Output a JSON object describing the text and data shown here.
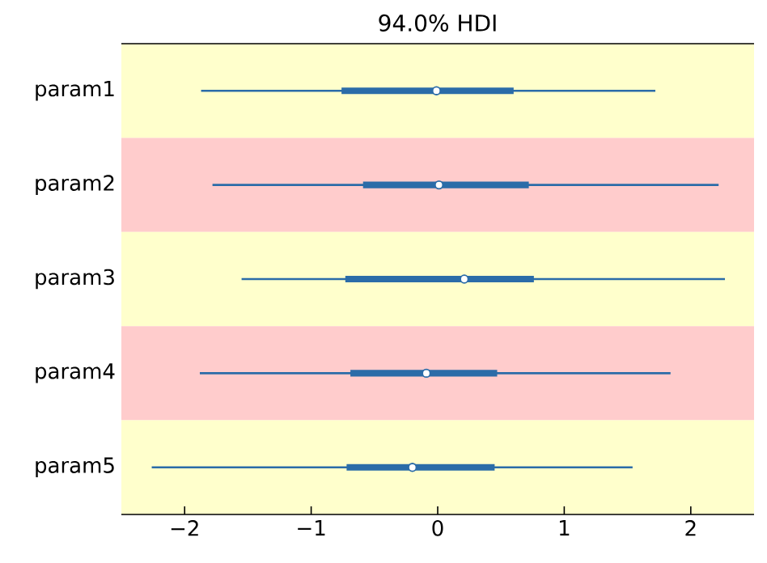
{
  "chart_data": {
    "type": "box",
    "orientation": "horizontal",
    "title": "94.0% HDI",
    "categories": [
      "param1",
      "param2",
      "param3",
      "param4",
      "param5"
    ],
    "series": [
      {
        "color": "#2b6ca8",
        "boxes": [
          {
            "low": -1.87,
            "q1": -0.76,
            "median": -0.01,
            "q3": 0.6,
            "high": 1.72
          },
          {
            "low": -1.78,
            "q1": -0.59,
            "median": 0.01,
            "q3": 0.72,
            "high": 2.22
          },
          {
            "low": -1.55,
            "q1": -0.73,
            "median": 0.21,
            "q3": 0.76,
            "high": 2.27
          },
          {
            "low": -1.88,
            "q1": -0.69,
            "median": -0.09,
            "q3": 0.47,
            "high": 1.84
          },
          {
            "low": -2.26,
            "q1": -0.72,
            "median": -0.2,
            "q3": 0.45,
            "high": 1.54
          }
        ]
      }
    ],
    "xlim": [
      -2.5,
      2.5
    ],
    "xticks": [
      {
        "value": -2,
        "label": "−2"
      },
      {
        "value": -1,
        "label": "−1"
      },
      0,
      1,
      2
    ],
    "grid": false,
    "marker": "circle"
  }
}
